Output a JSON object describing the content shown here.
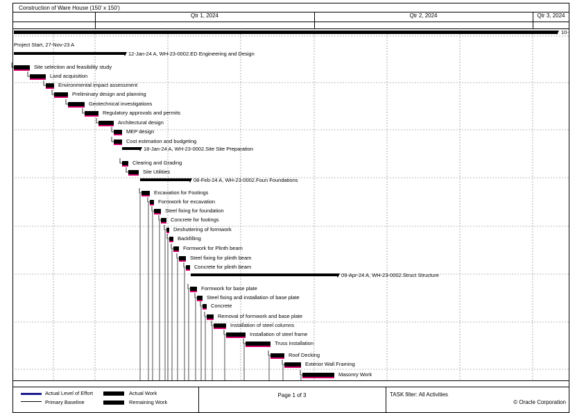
{
  "header": {
    "title": "Construction of Ware House  (150' x 150')",
    "quarters": [
      "Qtr 1, 2024",
      "Qtr 2, 2024",
      "Qtr 3, 2024"
    ]
  },
  "chart_data": {
    "type": "gantt",
    "project_summary_label": "10-",
    "milestone": "Project Start, 27-Nov-23 A",
    "groups": [
      {
        "label": "12-Jan-24 A, WH-23-0002.ED  Engineering and Design"
      },
      {
        "label": "18-Jan-24 A, WH-23-0002.Site  Site Preparation"
      },
      {
        "label": "08-Feb-24 A, WH-23-0002.Foun  Foundations"
      },
      {
        "label": "09-Apr-24 A, WH-23-0002.Struct  Structure"
      }
    ],
    "tasks": [
      "Site selection and feasibility study",
      "Land acquisition",
      "Environmental impact assessment",
      "Preliminary design and planning",
      "Geotechnical investigations",
      "Regulatory approvals and permits",
      "Architectural design",
      "MEP design",
      "Cost estimation and budgeting",
      "Clearing and Grading",
      "Site Utilities",
      "Excavation for Footings",
      "Formwork for excavation",
      "Steel fixing for foundation",
      "Concrete for footings",
      "Deshuttering of formwork",
      "Backfilling",
      "Formwork for Plinth beam",
      "Steel fixing for plinth beam",
      "Concrete for plinth beam",
      "Formwork for base plate",
      "Steel fixing and installation of base plate",
      "Concrete",
      "Removal of formwork and base plate",
      "Installation of steel columns",
      "Installation of steel frame",
      "Truss installation",
      "Roof Decking",
      "Exterior Wall Framing",
      "Masonry Work"
    ]
  },
  "legend": {
    "actual_loe": "Actual Level of Effort",
    "primary_baseline": "Primary Baseline",
    "actual_work": "Actual Work",
    "remaining_work": "Remaining Work"
  },
  "footer": {
    "page": "Page 1 of 3",
    "filter": "TASK filter: All Activities",
    "copyright": "© Oracle Corporation"
  }
}
